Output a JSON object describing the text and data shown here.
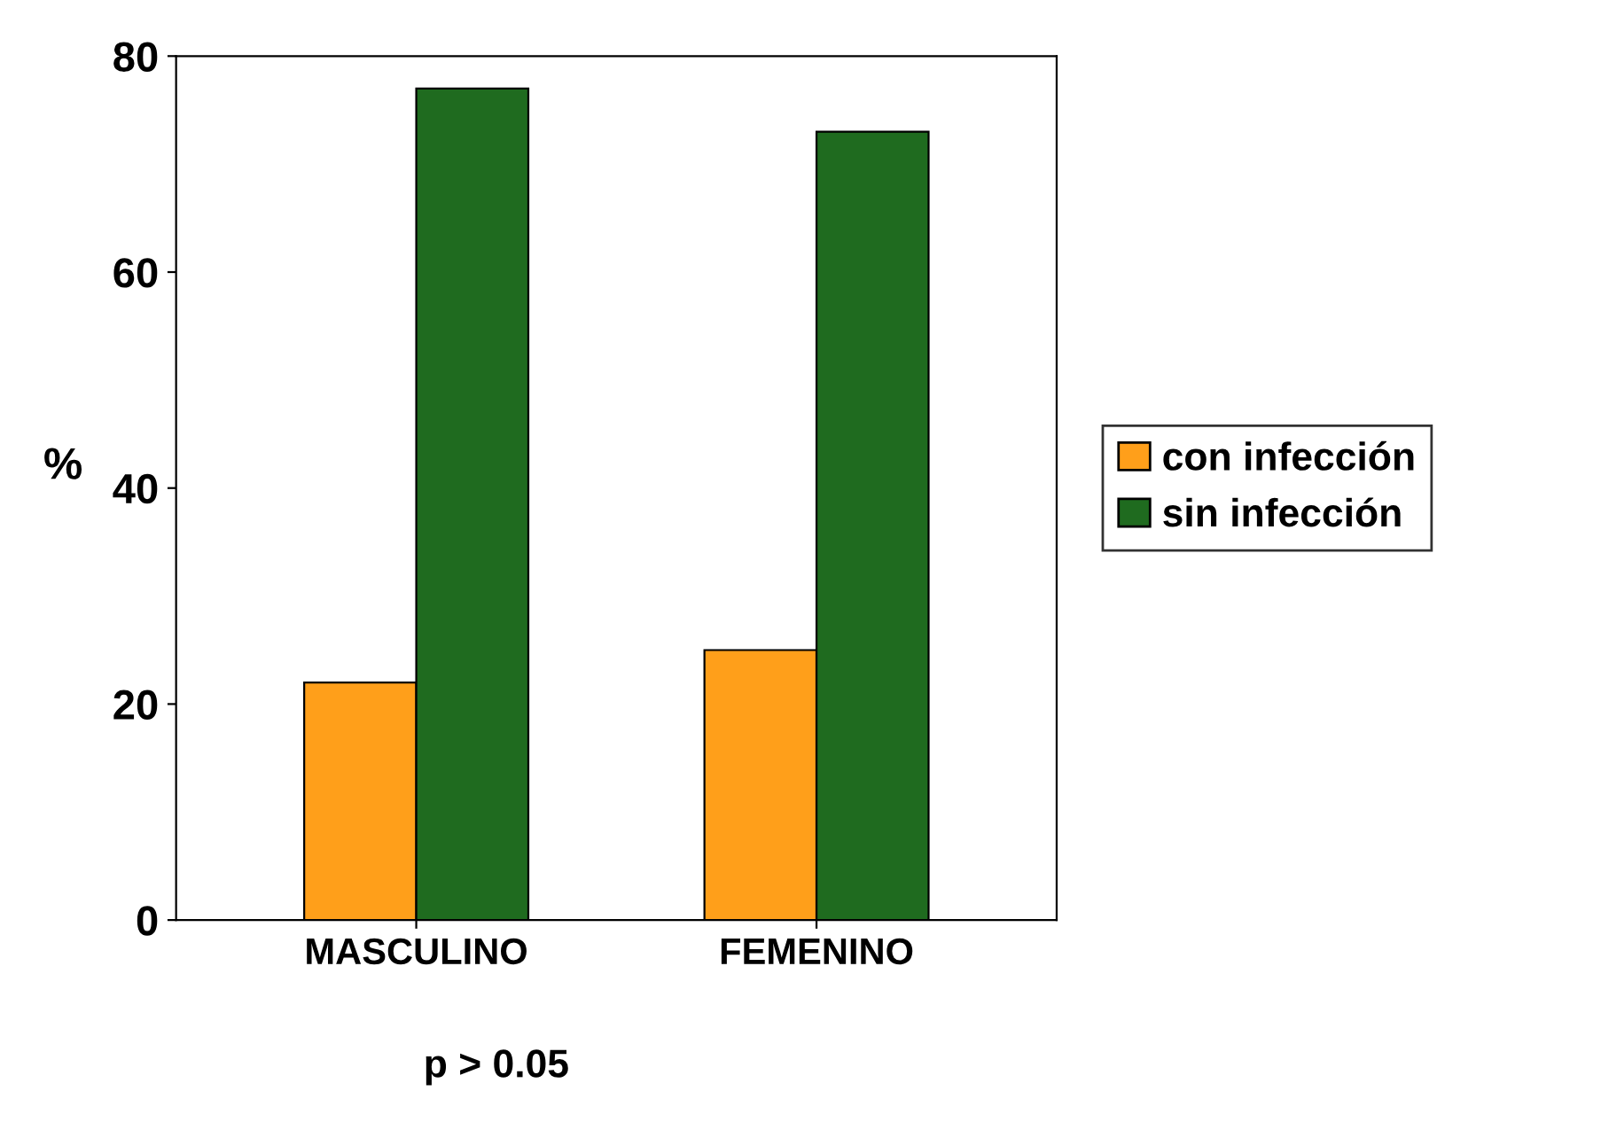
{
  "chart_data": {
    "type": "bar",
    "ylabel": "%",
    "categories": [
      "MASCULINO",
      "FEMENINO"
    ],
    "series": [
      {
        "name": "con infección",
        "color": "#ff9f1a",
        "values": [
          22,
          25
        ]
      },
      {
        "name": "sin infección",
        "color": "#1f6b1f",
        "values": [
          77,
          73
        ]
      }
    ],
    "ylim": [
      0,
      80
    ],
    "yticks": [
      0,
      20,
      40,
      60,
      80
    ],
    "grid": false,
    "legend": "right",
    "annotations": [
      "p > 0.05"
    ]
  }
}
